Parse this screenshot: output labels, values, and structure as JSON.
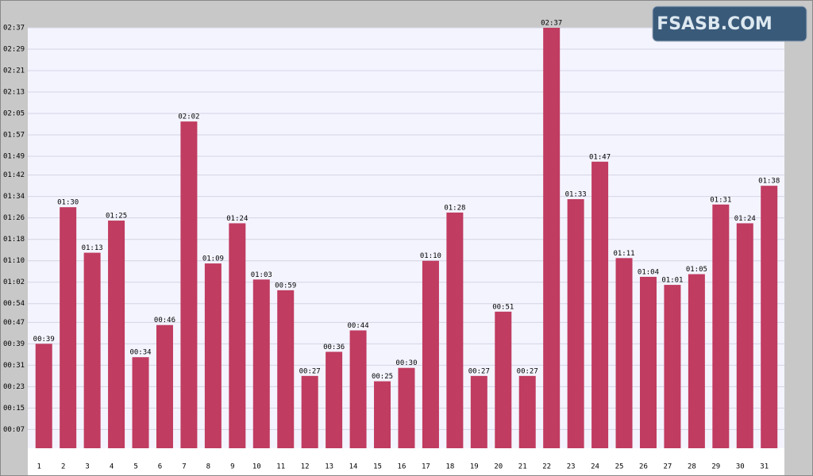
{
  "logo": "FSASB.COM",
  "chart_data": {
    "type": "bar",
    "categories": [
      "1",
      "2",
      "3",
      "4",
      "5",
      "6",
      "7",
      "8",
      "9",
      "10",
      "11",
      "12",
      "13",
      "14",
      "15",
      "16",
      "17",
      "18",
      "19",
      "20",
      "21",
      "22",
      "23",
      "24",
      "25",
      "26",
      "27",
      "28",
      "29",
      "30",
      "31"
    ],
    "values": [
      39,
      90,
      73,
      85,
      34,
      46,
      122,
      69,
      84,
      63,
      59,
      27,
      36,
      44,
      25,
      30,
      70,
      88,
      27,
      51,
      27,
      157,
      93,
      107,
      71,
      64,
      61,
      65,
      91,
      84,
      98
    ],
    "value_labels": [
      "00:39",
      "01:30",
      "01:13",
      "01:25",
      "00:34",
      "00:46",
      "02:02",
      "01:09",
      "01:24",
      "01:03",
      "00:59",
      "00:27",
      "00:36",
      "00:44",
      "00:25",
      "00:30",
      "01:10",
      "01:28",
      "00:27",
      "00:51",
      "00:27",
      "02:37",
      "01:33",
      "01:47",
      "01:11",
      "01:04",
      "01:01",
      "01:05",
      "01:31",
      "01:24",
      "01:38"
    ],
    "color": "#c03c60",
    "ylim": [
      0,
      157
    ],
    "yticks": [
      {
        "value": 7,
        "label": "00:07"
      },
      {
        "value": 15,
        "label": "00:15"
      },
      {
        "value": 23,
        "label": "00:23"
      },
      {
        "value": 31,
        "label": "00:31"
      },
      {
        "value": 39,
        "label": "00:39"
      },
      {
        "value": 47,
        "label": "00:47"
      },
      {
        "value": 54,
        "label": "00:54"
      },
      {
        "value": 62,
        "label": "01:02"
      },
      {
        "value": 70,
        "label": "01:10"
      },
      {
        "value": 78,
        "label": "01:18"
      },
      {
        "value": 86,
        "label": "01:26"
      },
      {
        "value": 94,
        "label": "01:34"
      },
      {
        "value": 102,
        "label": "01:42"
      },
      {
        "value": 109,
        "label": "01:49"
      },
      {
        "value": 117,
        "label": "01:57"
      },
      {
        "value": 125,
        "label": "02:05"
      },
      {
        "value": 133,
        "label": "02:13"
      },
      {
        "value": 141,
        "label": "02:21"
      },
      {
        "value": 149,
        "label": "02:29"
      },
      {
        "value": 157,
        "label": "02:37"
      }
    ],
    "grid": true
  }
}
